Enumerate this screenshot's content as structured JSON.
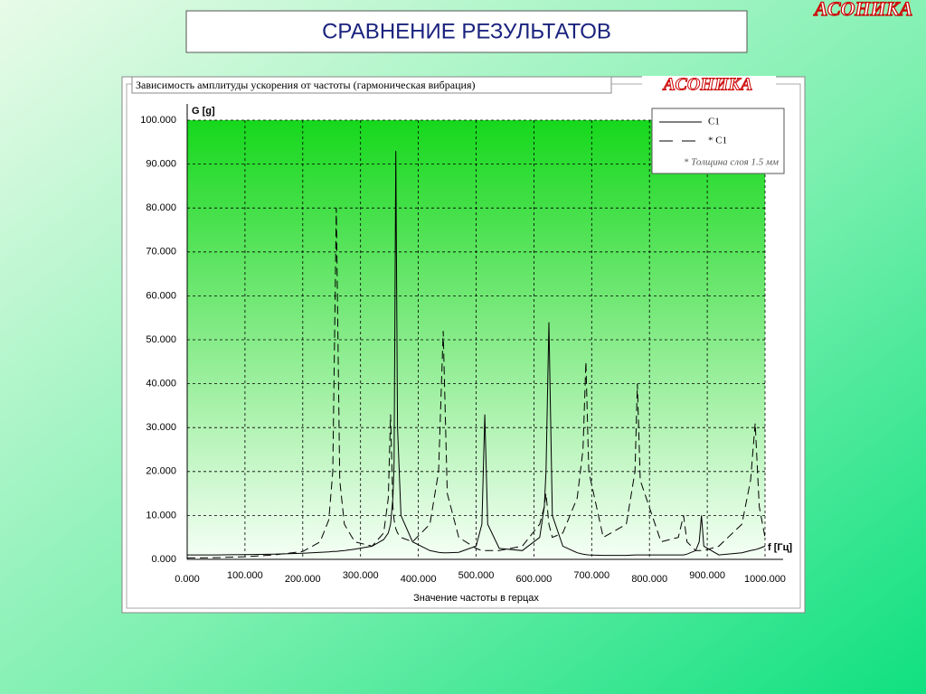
{
  "slide_title": "СРАВНЕНИЕ РЕЗУЛЬТАТОВ",
  "logo": "АСОНИКА",
  "panel_title": "Зависимость амплитуды ускорения от частоты (гармоническая вибрация)",
  "chart_data": {
    "type": "line",
    "y_label": "G [g]",
    "x_label": "f [Гц]",
    "x_title": "Значение частоты в герцах",
    "annotation": "* Толщина слоя 1.5 мм",
    "grid": true,
    "legend": "top-right",
    "xlim": [
      0,
      1000
    ],
    "ylim": [
      0,
      100
    ],
    "xticks": [
      {
        "value": 0,
        "label": "0.000"
      },
      {
        "value": 100,
        "label": "100.000"
      },
      {
        "value": 200,
        "label": "200.000"
      },
      {
        "value": 300,
        "label": "300.000"
      },
      {
        "value": 400,
        "label": "400.000"
      },
      {
        "value": 500,
        "label": "500.000"
      },
      {
        "value": 600,
        "label": "600.000"
      },
      {
        "value": 700,
        "label": "700.000"
      },
      {
        "value": 800,
        "label": "800.000"
      },
      {
        "value": 900,
        "label": "900.000"
      },
      {
        "value": 1000,
        "label": "1000.000"
      }
    ],
    "yticks": [
      {
        "value": 0,
        "label": "0.000"
      },
      {
        "value": 10,
        "label": "10.000"
      },
      {
        "value": 20,
        "label": "20.000"
      },
      {
        "value": 30,
        "label": "30.000"
      },
      {
        "value": 40,
        "label": "40.000"
      },
      {
        "value": 50,
        "label": "50.000"
      },
      {
        "value": 60,
        "label": "60.000"
      },
      {
        "value": 70,
        "label": "70.000"
      },
      {
        "value": 80,
        "label": "80.000"
      },
      {
        "value": 90,
        "label": "90.000"
      },
      {
        "value": 100,
        "label": "100.000"
      }
    ],
    "x": [
      0,
      50,
      100,
      150,
      200,
      230,
      245,
      252,
      258,
      264,
      272,
      290,
      320,
      340,
      348,
      352,
      356,
      358,
      361,
      364,
      370,
      390,
      420,
      435,
      443,
      450,
      470,
      500,
      510,
      515,
      520,
      540,
      580,
      610,
      618,
      621,
      626,
      632,
      650,
      675,
      685,
      690,
      695,
      720,
      760,
      775,
      779,
      784,
      820,
      850,
      859,
      865,
      880,
      886,
      890,
      894,
      920,
      960,
      975,
      983,
      990,
      1000
    ],
    "series": [
      {
        "name": "C1",
        "color": "#000000",
        "style": "solid",
        "values": [
          1,
          1,
          1.1,
          1.2,
          1.4,
          1.6,
          1.7,
          1.8,
          1.8,
          1.9,
          2,
          2.3,
          3,
          4.5,
          6,
          8,
          14,
          22,
          93,
          30,
          10,
          4,
          2,
          1.6,
          1.5,
          1.5,
          1.6,
          3,
          8,
          33,
          8,
          2.5,
          2,
          5,
          12,
          20,
          54,
          10,
          3,
          1.5,
          1.2,
          1.1,
          1,
          0.9,
          0.9,
          1,
          1,
          1,
          1,
          1,
          1,
          1.2,
          2,
          4,
          10,
          3,
          1,
          1.5,
          2,
          2.2,
          2.5,
          3
        ]
      },
      {
        "name": "* C1",
        "color": "#000000",
        "style": "dashed",
        "values": [
          0.3,
          0.4,
          0.6,
          1,
          1.8,
          4,
          9,
          20,
          80,
          18,
          8,
          4,
          3,
          6,
          14,
          33,
          12,
          9,
          7,
          6,
          5,
          4,
          8,
          20,
          52,
          15,
          5,
          2.5,
          2,
          2,
          2,
          2,
          3,
          8,
          12,
          15,
          8,
          5,
          6,
          14,
          25,
          45,
          20,
          5,
          8,
          20,
          40,
          18,
          4,
          5,
          10,
          4,
          2,
          2,
          2,
          2,
          3,
          8,
          18,
          31,
          12,
          5
        ]
      }
    ]
  }
}
